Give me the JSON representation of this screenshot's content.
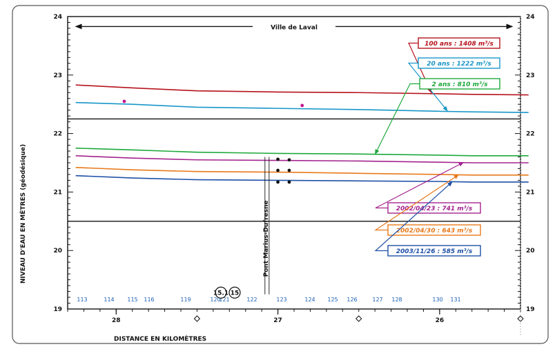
{
  "chart_data": {
    "type": "line",
    "title": "",
    "xlabel": "DISTANCE EN KILOMÈTRES",
    "ylabel": "NIVEAU D'EAU EN MÈTRES (géodésique)",
    "xlim": [
      28.3,
      25.5
    ],
    "ylim": [
      19,
      24
    ],
    "x_ticks": [
      {
        "value": 28.0,
        "label": "28"
      },
      {
        "value": 27.0,
        "label": "27"
      },
      {
        "value": 26.0,
        "label": "26"
      }
    ],
    "x_diamonds": [
      27.5,
      26.5,
      25.5
    ],
    "y_ticks": [
      19,
      20,
      21,
      22,
      23,
      24
    ],
    "header": {
      "text": "Ville de Laval",
      "x_from": 28.25,
      "x_to": 25.55,
      "y": 23.83
    },
    "separators": [
      22.25,
      20.5
    ],
    "bridge_label": "Pont Marius-Dufresne",
    "bridge_x": 27.08,
    "stations": [
      {
        "label": "113",
        "x": 28.25
      },
      {
        "label": "114",
        "x": 27.85
      },
      {
        "label": "115",
        "x": 27.48
      },
      {
        "label": "116",
        "x": 27.3
      },
      {
        "label": "119",
        "x": 26.8
      },
      {
        "label": "120",
        "x": 26.45
      },
      {
        "label": "121",
        "x": 26.28
      },
      {
        "label": "122",
        "x": 26.05
      },
      {
        "label": "123",
        "x": 26.45
      },
      {
        "label": "124",
        "x": 26.25
      },
      {
        "label": "125",
        "x": 26.12
      },
      {
        "label": "126",
        "x": 25.98
      },
      {
        "label": "127",
        "x": 25.82
      },
      {
        "label": "128",
        "x": 25.69
      },
      {
        "label": "130",
        "x": 25.57
      },
      {
        "label": "131",
        "x": 25.52
      }
    ],
    "circled_stations": [
      {
        "label": "15.1",
        "x": 27.05
      },
      {
        "label": "15",
        "x": 26.9
      }
    ],
    "series": [
      {
        "name": "100 ans : 1408 m³/s",
        "color": "#b5121b",
        "x": [
          28.25,
          27.9,
          27.5,
          27.0,
          26.5,
          26.0,
          25.8,
          25.45
        ],
        "values": [
          22.83,
          22.78,
          22.73,
          22.71,
          22.7,
          22.68,
          22.67,
          22.66
        ]
      },
      {
        "name": "20 ans : 1222 m³/s",
        "color": "#1796c8",
        "x": [
          28.25,
          27.9,
          27.5,
          27.0,
          26.5,
          26.0,
          25.8,
          25.45
        ],
        "values": [
          22.53,
          22.5,
          22.45,
          22.43,
          22.41,
          22.38,
          22.37,
          22.36
        ]
      },
      {
        "name": "2 ans : 810 m³/s",
        "color": "#1ea83c",
        "x": [
          28.25,
          27.9,
          27.5,
          27.0,
          26.5,
          26.0,
          25.8,
          25.45
        ],
        "values": [
          21.75,
          21.72,
          21.68,
          21.66,
          21.65,
          21.63,
          21.62,
          21.62
        ]
      },
      {
        "name": "2002/04/23 : 741 m³/s",
        "color": "#a3238e",
        "x": [
          28.25,
          27.9,
          27.5,
          27.0,
          26.5,
          26.0,
          25.8,
          25.45
        ],
        "values": [
          21.62,
          21.58,
          21.55,
          21.54,
          21.53,
          21.51,
          21.5,
          21.5
        ]
      },
      {
        "name": "2002/04/30 : 643 m³/s",
        "color": "#e8791b",
        "x": [
          28.25,
          27.9,
          27.5,
          27.0,
          26.5,
          26.0,
          25.8,
          25.45
        ],
        "values": [
          21.42,
          21.38,
          21.35,
          21.34,
          21.32,
          21.3,
          21.29,
          21.29
        ]
      },
      {
        "name": "2003/11/26 : 585 m³/s",
        "color": "#1d4fa6",
        "x": [
          28.25,
          27.9,
          27.5,
          27.0,
          26.5,
          26.0,
          25.8,
          25.45
        ],
        "values": [
          21.28,
          21.24,
          21.21,
          21.2,
          21.19,
          21.18,
          21.17,
          21.17
        ]
      }
    ],
    "observations": [
      {
        "x": 27.95,
        "y": 22.55,
        "color": "#c0148e"
      },
      {
        "x": 26.85,
        "y": 22.48,
        "color": "#c0148e"
      },
      {
        "x": 27.0,
        "y": 21.56,
        "color": "#111111"
      },
      {
        "x": 26.93,
        "y": 21.55,
        "color": "#111111"
      },
      {
        "x": 27.0,
        "y": 21.37,
        "color": "#111111"
      },
      {
        "x": 26.93,
        "y": 21.37,
        "color": "#111111"
      },
      {
        "x": 27.0,
        "y": 21.17,
        "color": "#111111"
      },
      {
        "x": 26.93,
        "y": 21.17,
        "color": "#111111"
      }
    ],
    "legend": [
      {
        "series": 0,
        "label": "100 ans : 1408 m³/s",
        "pointer_to": {
          "x": 26.05,
          "y": 22.69
        }
      },
      {
        "series": 1,
        "label": "20 ans : 1222 m³/s",
        "pointer_to": {
          "x": 25.95,
          "y": 22.38
        }
      },
      {
        "series": 2,
        "label": "2 ans : 810 m³/s",
        "pointer_to": {
          "x": 26.4,
          "y": 21.64
        }
      },
      {
        "series": 3,
        "label": "2002/04/23 : 741 m³/s",
        "pointer_to": {
          "x": 25.85,
          "y": 21.51
        }
      },
      {
        "series": 4,
        "label": "2002/04/30 : 643 m³/s",
        "pointer_to": {
          "x": 25.88,
          "y": 21.3
        }
      },
      {
        "series": 5,
        "label": "2003/11/26 : 585 m³/s",
        "pointer_to": {
          "x": 25.92,
          "y": 21.18
        }
      }
    ]
  }
}
